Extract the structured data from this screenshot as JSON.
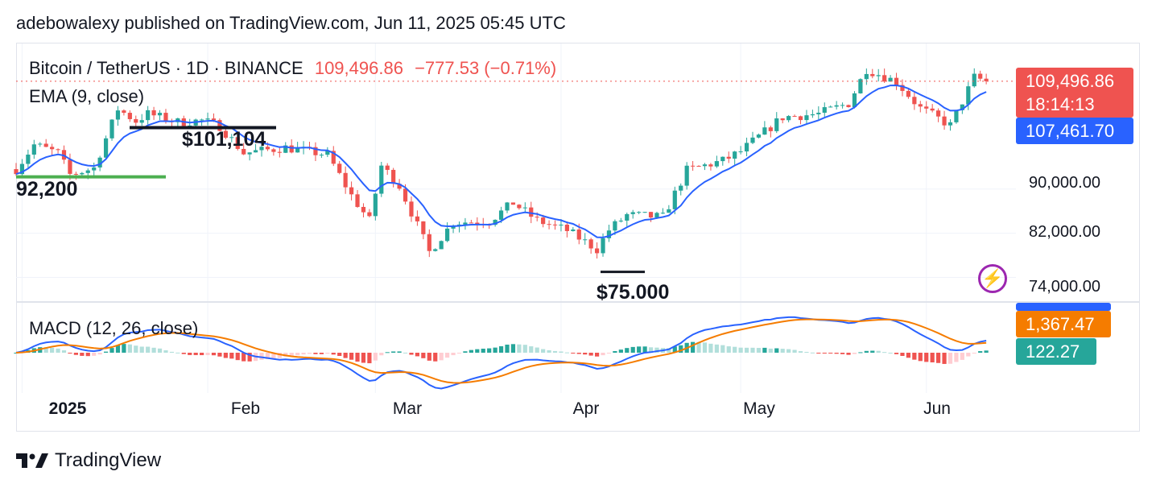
{
  "header": {
    "published_text": "adebowalexy published on TradingView.com, Jun 11, 2025 05:45 UTC"
  },
  "legend": {
    "symbol": "Bitcoin / TetherUS · 1D · BINANCE",
    "price": "109,496.86",
    "change": "−777.53 (−0.71%)",
    "ema_label": "EMA (9, close)",
    "macd_label": "MACD (12, 26, close)"
  },
  "price_labels": {
    "last_price": "109,496.86",
    "countdown": "18:14:13",
    "ema_value": "107,461.70",
    "macd_value": "1,367.47",
    "histogram_value": "122.27"
  },
  "annotations": {
    "resistance": "$101,104",
    "support": "92,200",
    "low": "$75.000"
  },
  "footer": {
    "brand": "TradingView"
  },
  "colors": {
    "up": "#26a69a",
    "down": "#ef5350",
    "ema": "#2962ff",
    "macd": "#2962ff",
    "signal": "#f57c00",
    "support_line": "#4caf50",
    "resistance_line": "#131722",
    "last_price_line": "#ef5350",
    "hist_up_strong": "#26a69a",
    "hist_up_weak": "#b2dfdb",
    "hist_down_strong": "#ef5350",
    "hist_down_weak": "#ffcdd2",
    "icon": "#9c27b0"
  },
  "icons": {
    "alert": "lightning-bolt-icon",
    "logo": "tradingview-logo-icon"
  },
  "chart_data": {
    "type": "candlestick",
    "title": "Bitcoin / TetherUS · 1D · BINANCE",
    "ylim": [
      70000,
      114000
    ],
    "y_ticks": [
      "90,000.00",
      "82,000.00",
      "74,000.00"
    ],
    "y_tick_values": [
      90000,
      82000,
      74000
    ],
    "x_ticks": [
      "2025",
      "Feb",
      "Mar",
      "Apr",
      "May",
      "Jun"
    ],
    "x_tick_dates": [
      "2025-01-01",
      "2025-02-01",
      "2025-03-01",
      "2025-04-01",
      "2025-05-01",
      "2025-06-01"
    ],
    "x_range": [
      "2024-12-31",
      "2025-06-13"
    ],
    "anchor_closes": [
      [
        "2024-12-31",
        93600
      ],
      [
        "2025-01-03",
        98000
      ],
      [
        "2025-01-07",
        96500
      ],
      [
        "2025-01-09",
        92600
      ],
      [
        "2025-01-13",
        93800
      ],
      [
        "2025-01-17",
        104500
      ],
      [
        "2025-01-20",
        102300
      ],
      [
        "2025-01-22",
        103600
      ],
      [
        "2025-01-27",
        102100
      ],
      [
        "2025-01-31",
        102400
      ],
      [
        "2025-02-03",
        101400
      ],
      [
        "2025-02-07",
        96500
      ],
      [
        "2025-02-14",
        97500
      ],
      [
        "2025-02-21",
        96200
      ],
      [
        "2025-02-25",
        88800
      ],
      [
        "2025-02-28",
        84300
      ],
      [
        "2025-03-02",
        94200
      ],
      [
        "2025-03-05",
        90600
      ],
      [
        "2025-03-10",
        78600
      ],
      [
        "2025-03-14",
        84000
      ],
      [
        "2025-03-20",
        84200
      ],
      [
        "2025-03-24",
        87500
      ],
      [
        "2025-03-28",
        84300
      ],
      [
        "2025-04-02",
        82500
      ],
      [
        "2025-04-07",
        79100
      ],
      [
        "2025-04-09",
        82600
      ],
      [
        "2025-04-12",
        85300
      ],
      [
        "2025-04-18",
        84900
      ],
      [
        "2025-04-22",
        93400
      ],
      [
        "2025-04-28",
        95100
      ],
      [
        "2025-05-01",
        96800
      ],
      [
        "2025-05-08",
        103000
      ],
      [
        "2025-05-14",
        103600
      ],
      [
        "2025-05-19",
        105500
      ],
      [
        "2025-05-22",
        111700
      ],
      [
        "2025-05-27",
        109400
      ],
      [
        "2025-05-31",
        104600
      ],
      [
        "2025-06-05",
        101500
      ],
      [
        "2025-06-09",
        110200
      ],
      [
        "2025-06-11",
        109496.86
      ]
    ],
    "ema": {
      "name": "EMA (9, close)",
      "last": 107461.7
    },
    "support_level": 92200,
    "resistance_level": 101104,
    "low_level": 75000,
    "macd": {
      "name": "MACD (12, 26, close)",
      "last_macd": 1367.47,
      "last_histogram": 122.27,
      "ylim": [
        -4500,
        4500
      ]
    }
  }
}
